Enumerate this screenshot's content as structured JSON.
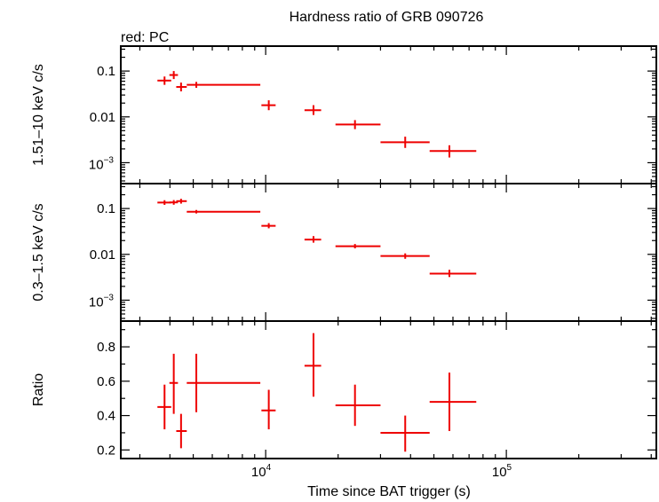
{
  "chart_data": {
    "type": "scatter",
    "title": "Hardness ratio of GRB 090726",
    "legend_text": "red: PC",
    "xlabel": "Time since BAT trigger (s)",
    "x_scale": "log",
    "xlim": [
      2500,
      420000
    ],
    "x_ticks": [
      {
        "value": 10000,
        "base": "10",
        "exp": "4"
      },
      {
        "value": 100000,
        "base": "10",
        "exp": "5"
      }
    ],
    "series_color": "#ee0000",
    "panels": [
      {
        "name": "hard",
        "ylabel": "1.51–10 keV c/s",
        "y_scale": "log",
        "ylim": [
          0.00035,
          0.35
        ],
        "y_ticks": [
          {
            "value": 0.1,
            "label": "0.1"
          },
          {
            "value": 0.01,
            "label": "0.01"
          },
          {
            "value": 0.001,
            "base": "10",
            "exp": "−3"
          }
        ],
        "points": [
          {
            "x": 3800,
            "x_lo": 3550,
            "x_hi": 4050,
            "y": 0.062,
            "y_lo": 0.05,
            "y_hi": 0.076
          },
          {
            "x": 4150,
            "x_lo": 3980,
            "x_hi": 4320,
            "y": 0.082,
            "y_lo": 0.067,
            "y_hi": 0.1
          },
          {
            "x": 4450,
            "x_lo": 4250,
            "x_hi": 4700,
            "y": 0.045,
            "y_lo": 0.036,
            "y_hi": 0.056
          },
          {
            "x": 5150,
            "x_lo": 4700,
            "x_hi": 9500,
            "y": 0.05,
            "y_lo": 0.043,
            "y_hi": 0.058
          },
          {
            "x": 10300,
            "x_lo": 9600,
            "x_hi": 11000,
            "y": 0.018,
            "y_lo": 0.014,
            "y_hi": 0.023
          },
          {
            "x": 15800,
            "x_lo": 14500,
            "x_hi": 17000,
            "y": 0.014,
            "y_lo": 0.011,
            "y_hi": 0.018
          },
          {
            "x": 23500,
            "x_lo": 19500,
            "x_hi": 30000,
            "y": 0.0068,
            "y_lo": 0.0054,
            "y_hi": 0.0085
          },
          {
            "x": 38000,
            "x_lo": 30000,
            "x_hi": 48000,
            "y": 0.0028,
            "y_lo": 0.0021,
            "y_hi": 0.0037
          },
          {
            "x": 58000,
            "x_lo": 48000,
            "x_hi": 75000,
            "y": 0.0018,
            "y_lo": 0.0013,
            "y_hi": 0.0024
          }
        ]
      },
      {
        "name": "soft",
        "ylabel": "0.3–1.5 keV c/s",
        "y_scale": "log",
        "ylim": [
          0.00035,
          0.35
        ],
        "y_ticks": [
          {
            "value": 0.1,
            "label": "0.1"
          },
          {
            "value": 0.01,
            "label": "0.01"
          },
          {
            "value": 0.001,
            "base": "10",
            "exp": "−3"
          }
        ],
        "points": [
          {
            "x": 3800,
            "x_lo": 3550,
            "x_hi": 4050,
            "y": 0.135,
            "y_lo": 0.12,
            "y_hi": 0.152
          },
          {
            "x": 4150,
            "x_lo": 3980,
            "x_hi": 4320,
            "y": 0.136,
            "y_lo": 0.121,
            "y_hi": 0.153
          },
          {
            "x": 4450,
            "x_lo": 4250,
            "x_hi": 4700,
            "y": 0.145,
            "y_lo": 0.128,
            "y_hi": 0.163
          },
          {
            "x": 5150,
            "x_lo": 4700,
            "x_hi": 9500,
            "y": 0.085,
            "y_lo": 0.078,
            "y_hi": 0.093
          },
          {
            "x": 10300,
            "x_lo": 9600,
            "x_hi": 11000,
            "y": 0.042,
            "y_lo": 0.037,
            "y_hi": 0.048
          },
          {
            "x": 15800,
            "x_lo": 14500,
            "x_hi": 17000,
            "y": 0.021,
            "y_lo": 0.018,
            "y_hi": 0.025
          },
          {
            "x": 23500,
            "x_lo": 19500,
            "x_hi": 30000,
            "y": 0.015,
            "y_lo": 0.0135,
            "y_hi": 0.0168
          },
          {
            "x": 38000,
            "x_lo": 30000,
            "x_hi": 48000,
            "y": 0.0092,
            "y_lo": 0.008,
            "y_hi": 0.0105
          },
          {
            "x": 58000,
            "x_lo": 48000,
            "x_hi": 75000,
            "y": 0.0038,
            "y_lo": 0.0032,
            "y_hi": 0.0046
          }
        ]
      },
      {
        "name": "ratio",
        "ylabel": "Ratio",
        "y_scale": "linear",
        "ylim": [
          0.15,
          0.95
        ],
        "y_ticks": [
          {
            "value": 0.2,
            "label": "0.2"
          },
          {
            "value": 0.4,
            "label": "0.4"
          },
          {
            "value": 0.6,
            "label": "0.6"
          },
          {
            "value": 0.8,
            "label": "0.8"
          }
        ],
        "points": [
          {
            "x": 3800,
            "x_lo": 3550,
            "x_hi": 4050,
            "y": 0.45,
            "y_lo": 0.32,
            "y_hi": 0.58
          },
          {
            "x": 4150,
            "x_lo": 3980,
            "x_hi": 4320,
            "y": 0.59,
            "y_lo": 0.41,
            "y_hi": 0.76
          },
          {
            "x": 4450,
            "x_lo": 4250,
            "x_hi": 4700,
            "y": 0.31,
            "y_lo": 0.21,
            "y_hi": 0.41
          },
          {
            "x": 5150,
            "x_lo": 4700,
            "x_hi": 9500,
            "y": 0.59,
            "y_lo": 0.42,
            "y_hi": 0.76
          },
          {
            "x": 10300,
            "x_lo": 9600,
            "x_hi": 11000,
            "y": 0.43,
            "y_lo": 0.32,
            "y_hi": 0.55
          },
          {
            "x": 15800,
            "x_lo": 14500,
            "x_hi": 17000,
            "y": 0.69,
            "y_lo": 0.51,
            "y_hi": 0.88
          },
          {
            "x": 23500,
            "x_lo": 19500,
            "x_hi": 30000,
            "y": 0.46,
            "y_lo": 0.34,
            "y_hi": 0.58
          },
          {
            "x": 38000,
            "x_lo": 30000,
            "x_hi": 48000,
            "y": 0.3,
            "y_lo": 0.19,
            "y_hi": 0.4
          },
          {
            "x": 58000,
            "x_lo": 48000,
            "x_hi": 75000,
            "y": 0.48,
            "y_lo": 0.31,
            "y_hi": 0.65
          }
        ]
      }
    ]
  }
}
